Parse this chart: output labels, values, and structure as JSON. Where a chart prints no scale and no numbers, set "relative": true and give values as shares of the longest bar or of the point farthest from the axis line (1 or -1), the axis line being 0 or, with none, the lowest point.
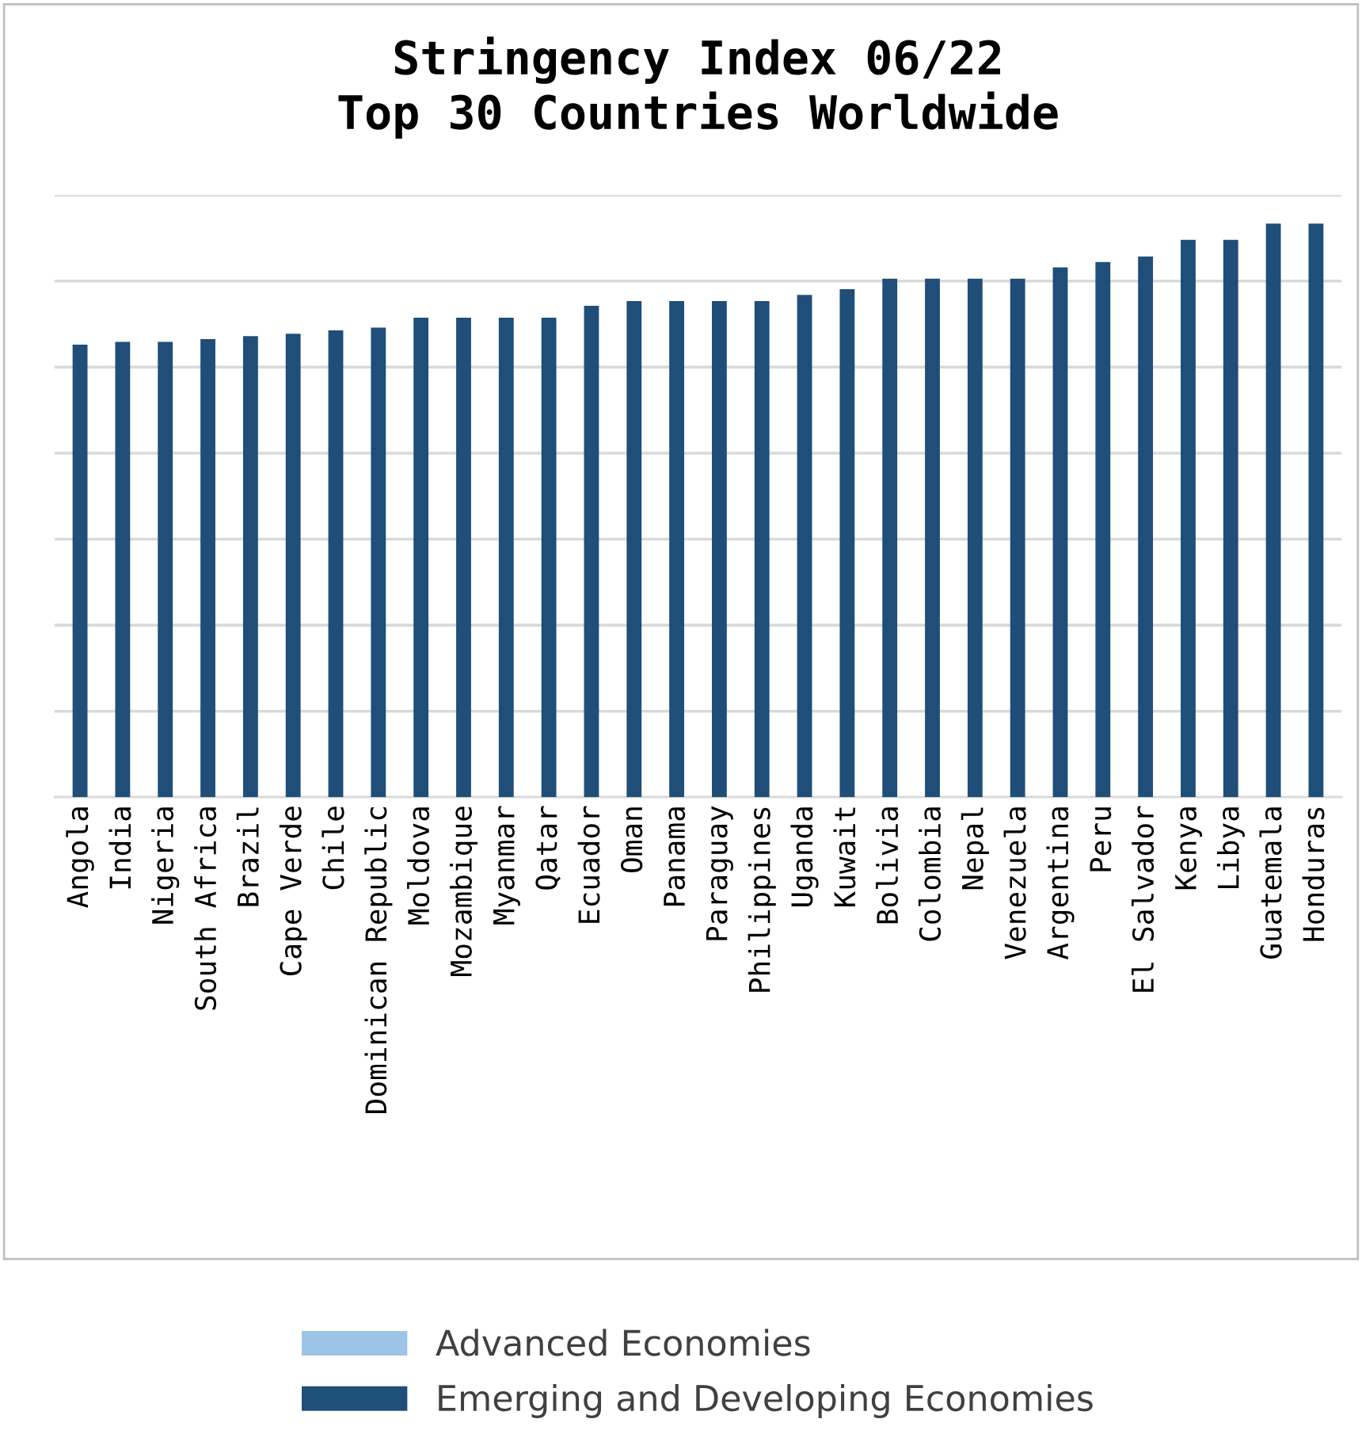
{
  "chart_data": {
    "type": "bar",
    "title": "Stringency Index 06/22\nTop 30 Countries Worldwide",
    "categories": [
      "Angola",
      "India",
      "Nigeria",
      "South Africa",
      "Brazil",
      "Cape Verde",
      "Chile",
      "Dominican Republic",
      "Moldova",
      "Mozambique",
      "Myanmar",
      "Qatar",
      "Ecuador",
      "Oman",
      "Panama",
      "Paraguay",
      "Philippines",
      "Uganda",
      "Kuwait",
      "Bolivia",
      "Colombia",
      "Nepal",
      "Venezuela",
      "Argentina",
      "Peru",
      "El Salvador",
      "Kenya",
      "Libya",
      "Guatemala",
      "Honduras"
    ],
    "series": [
      {
        "name": "Advanced Economies",
        "color": "#9dc3e6",
        "values": [
          null,
          null,
          null,
          null,
          null,
          null,
          null,
          null,
          null,
          null,
          null,
          null,
          null,
          null,
          null,
          null,
          null,
          null,
          null,
          null,
          null,
          null,
          null,
          null,
          null,
          null,
          null,
          null,
          null,
          null
        ]
      },
      {
        "name": "Emerging and Developing Economies",
        "color": "#1f4e79",
        "values": [
          0.789,
          0.794,
          0.794,
          0.799,
          0.804,
          0.808,
          0.814,
          0.819,
          0.836,
          0.836,
          0.836,
          0.836,
          0.857,
          0.865,
          0.865,
          0.865,
          0.865,
          0.876,
          0.886,
          0.904,
          0.904,
          0.904,
          0.904,
          0.924,
          0.933,
          0.943,
          0.972,
          0.972,
          1,
          1
        ]
      }
    ],
    "relative": true,
    "grid": "y",
    "legend": "bottom"
  }
}
